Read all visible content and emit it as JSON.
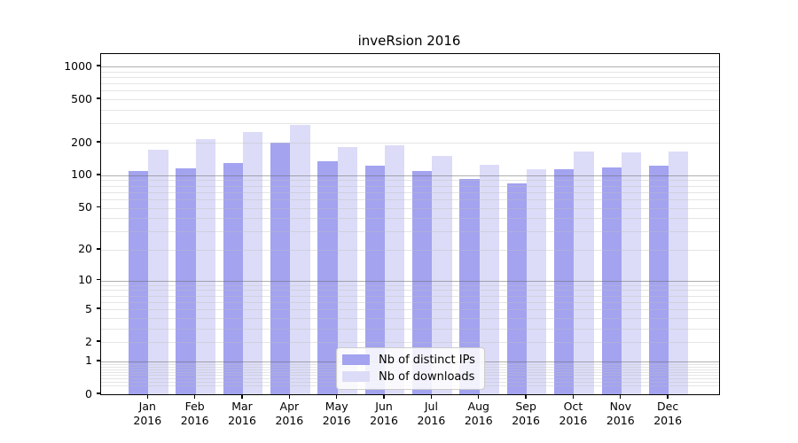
{
  "title": "inveRsion 2016",
  "legend": {
    "items": [
      {
        "label": "Nb of distinct IPs",
        "color": "#a3a3f0"
      },
      {
        "label": "Nb of downloads",
        "color": "#dcdcf8"
      }
    ]
  },
  "colors": {
    "bar_distinct_ips": "#a3a3f0",
    "bar_downloads": "#dcdcf8",
    "major_gridline": "#a9a9a9",
    "minor_gridline": "#e6e6e6",
    "axis": "#000000"
  },
  "chart_data": {
    "type": "bar",
    "title": "inveRsion 2016",
    "categories": [
      "Jan",
      "Feb",
      "Mar",
      "Apr",
      "May",
      "Jun",
      "Jul",
      "Aug",
      "Sep",
      "Oct",
      "Nov",
      "Dec"
    ],
    "x_year": "2016",
    "series": [
      {
        "name": "Nb of distinct IPs",
        "color": "#a3a3f0",
        "values": [
          110,
          117,
          130,
          200,
          135,
          122,
          110,
          92,
          84,
          114,
          118,
          123
        ]
      },
      {
        "name": "Nb of downloads",
        "color": "#dcdcf8",
        "values": [
          172,
          214,
          252,
          292,
          183,
          189,
          150,
          124,
          114,
          165,
          162,
          165
        ]
      }
    ],
    "xlabel": "",
    "ylabel": "",
    "yscale": "log1p",
    "yticks": [
      1000,
      500,
      200,
      100,
      50,
      20,
      10,
      5,
      2,
      1,
      0
    ],
    "ylim": [
      0,
      1300
    ],
    "grid": true,
    "legend_position": "inside-bottom-center"
  }
}
